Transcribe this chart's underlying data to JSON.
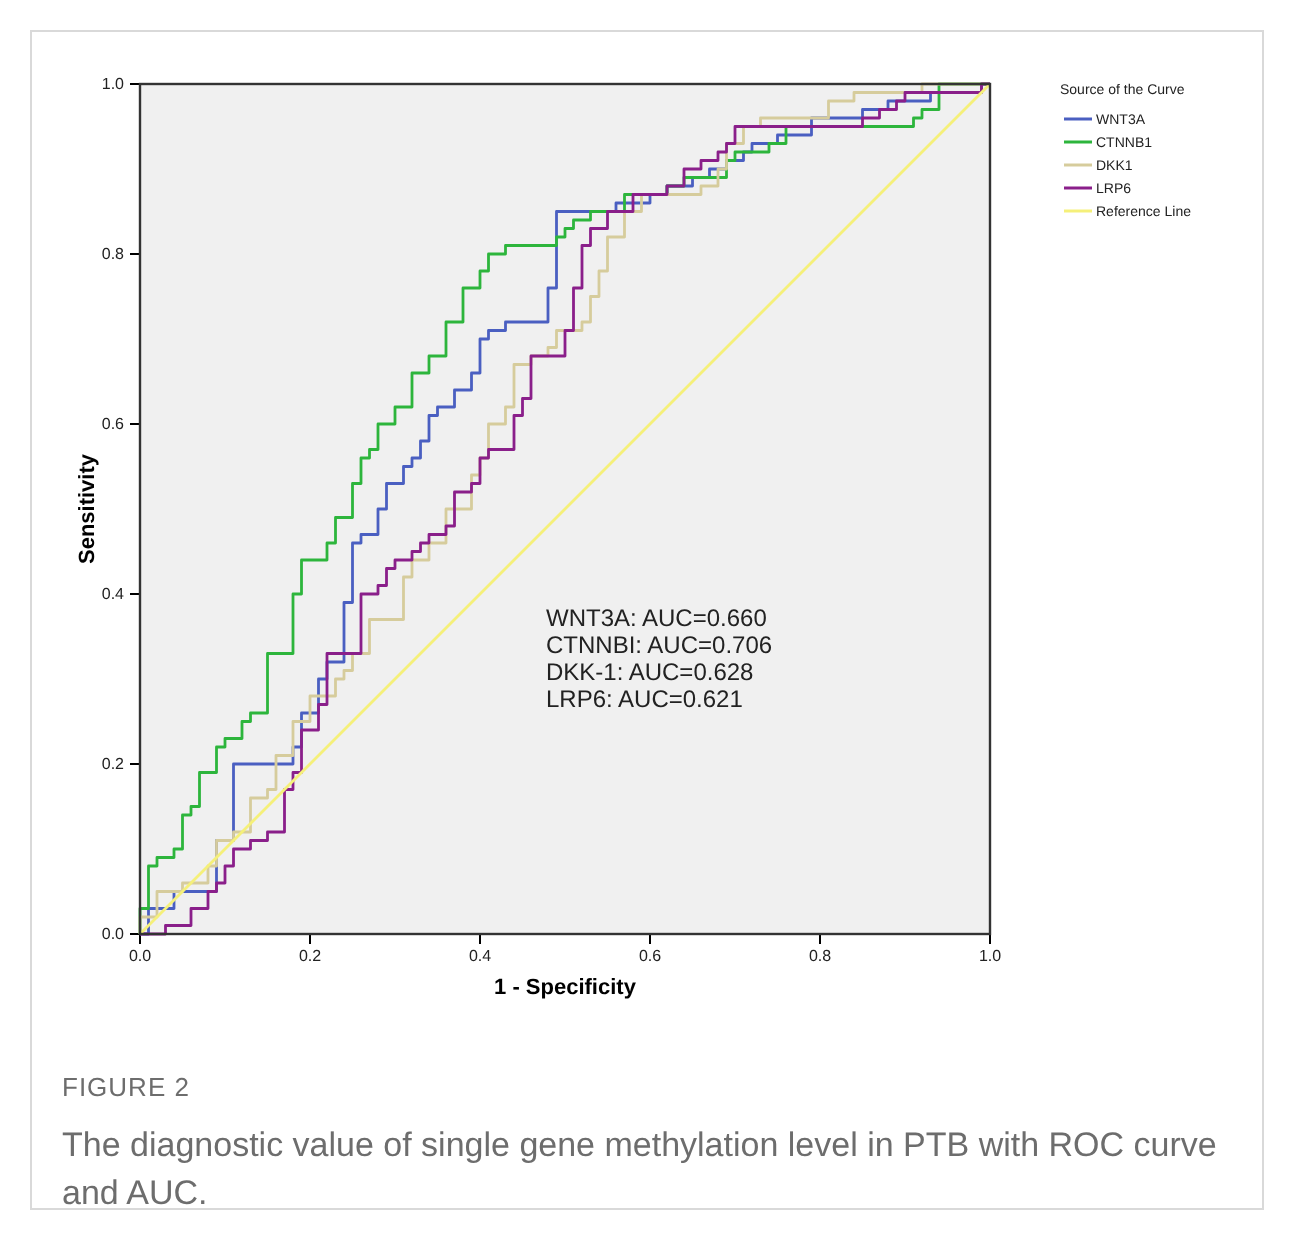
{
  "chart_data": {
    "type": "step",
    "title": "FIGURE 2",
    "subtitle": "The diagnostic value of single gene methylation level in PTB with ROC curve and AUC.",
    "xlabel": "1 - Specificity",
    "ylabel": "Sensitivity",
    "legend_title": "Source of the Curve",
    "legend": "right",
    "grid": false,
    "xlim": [
      0,
      1
    ],
    "ylim": [
      0,
      1
    ],
    "xticks": [
      {
        "value": 0,
        "label": "0.0"
      },
      {
        "value": 0.2,
        "label": "0.2"
      },
      {
        "value": 0.4,
        "label": "0.4"
      },
      {
        "value": 0.6,
        "label": "0.6"
      },
      {
        "value": 0.8,
        "label": "0.8"
      },
      {
        "value": 1,
        "label": "1.0"
      }
    ],
    "yticks": [
      {
        "value": 0,
        "label": "0.0"
      },
      {
        "value": 0.2,
        "label": "0.2"
      },
      {
        "value": 0.4,
        "label": "0.4"
      },
      {
        "value": 0.6,
        "label": "0.6"
      },
      {
        "value": 0.8,
        "label": "0.8"
      },
      {
        "value": 1,
        "label": "1.0"
      }
    ],
    "annotations": [
      "WNT3A: AUC=0.660",
      "CTNNBI: AUC=0.706",
      "DKK-1: AUC=0.628",
      "LRP6: AUC=0.621"
    ],
    "series": [
      {
        "name": "WNT3A",
        "color": "#4a5fc1",
        "x": [
          0,
          0.01,
          0.04,
          0.09,
          0.11,
          0.18,
          0.19,
          0.21,
          0.22,
          0.24,
          0.25,
          0.26,
          0.28,
          0.29,
          0.31,
          0.32,
          0.33,
          0.34,
          0.35,
          0.37,
          0.39,
          0.4,
          0.41,
          0.43,
          0.48,
          0.49,
          0.56,
          0.6,
          0.62,
          0.65,
          0.67,
          0.69,
          0.71,
          0.72,
          0.75,
          0.79,
          0.85,
          0.88,
          0.93,
          0.99,
          1
        ],
        "values": [
          0,
          0,
          0.03,
          0.05,
          0.11,
          0.2,
          0.22,
          0.26,
          0.3,
          0.32,
          0.39,
          0.46,
          0.47,
          0.5,
          0.53,
          0.55,
          0.56,
          0.58,
          0.61,
          0.62,
          0.64,
          0.66,
          0.7,
          0.71,
          0.72,
          0.76,
          0.85,
          0.86,
          0.87,
          0.88,
          0.89,
          0.9,
          0.91,
          0.92,
          0.93,
          0.94,
          0.96,
          0.97,
          0.98,
          0.99,
          1
        ]
      },
      {
        "name": "CTNNB1",
        "color": "#2db53c",
        "x": [
          0,
          0.01,
          0.02,
          0.04,
          0.05,
          0.06,
          0.07,
          0.09,
          0.1,
          0.12,
          0.13,
          0.15,
          0.18,
          0.19,
          0.22,
          0.23,
          0.25,
          0.26,
          0.27,
          0.28,
          0.3,
          0.32,
          0.34,
          0.35,
          0.36,
          0.38,
          0.4,
          0.41,
          0.43,
          0.49,
          0.5,
          0.51,
          0.53,
          0.57,
          0.62,
          0.64,
          0.69,
          0.7,
          0.74,
          0.76,
          0.91,
          0.92,
          0.94,
          1
        ],
        "values": [
          0,
          0.03,
          0.08,
          0.09,
          0.1,
          0.14,
          0.15,
          0.19,
          0.22,
          0.23,
          0.25,
          0.26,
          0.33,
          0.4,
          0.44,
          0.46,
          0.49,
          0.53,
          0.56,
          0.57,
          0.6,
          0.62,
          0.66,
          0.68,
          0.68,
          0.72,
          0.76,
          0.78,
          0.8,
          0.81,
          0.82,
          0.83,
          0.84,
          0.85,
          0.87,
          0.88,
          0.89,
          0.91,
          0.92,
          0.93,
          0.95,
          0.96,
          0.97,
          1
        ]
      },
      {
        "name": "DKK1",
        "color": "#d6cc9c",
        "x": [
          0,
          0.02,
          0.05,
          0.08,
          0.09,
          0.11,
          0.13,
          0.15,
          0.16,
          0.18,
          0.2,
          0.23,
          0.24,
          0.25,
          0.27,
          0.31,
          0.32,
          0.34,
          0.36,
          0.39,
          0.4,
          0.41,
          0.43,
          0.44,
          0.46,
          0.48,
          0.49,
          0.52,
          0.53,
          0.54,
          0.55,
          0.57,
          0.59,
          0.66,
          0.68,
          0.69,
          0.71,
          0.73,
          0.81,
          0.84,
          0.92,
          1
        ],
        "values": [
          0,
          0.02,
          0.05,
          0.06,
          0.08,
          0.11,
          0.12,
          0.16,
          0.17,
          0.21,
          0.25,
          0.28,
          0.3,
          0.31,
          0.33,
          0.37,
          0.42,
          0.44,
          0.46,
          0.5,
          0.54,
          0.56,
          0.6,
          0.62,
          0.67,
          0.68,
          0.69,
          0.71,
          0.72,
          0.75,
          0.78,
          0.82,
          0.85,
          0.87,
          0.88,
          0.9,
          0.93,
          0.95,
          0.96,
          0.98,
          0.99,
          1
        ]
      },
      {
        "name": "LRP6",
        "color": "#8a1f8a",
        "x": [
          0,
          0.03,
          0.06,
          0.08,
          0.09,
          0.1,
          0.11,
          0.13,
          0.15,
          0.17,
          0.18,
          0.19,
          0.21,
          0.22,
          0.26,
          0.28,
          0.29,
          0.3,
          0.32,
          0.33,
          0.34,
          0.36,
          0.37,
          0.39,
          0.4,
          0.41,
          0.44,
          0.45,
          0.46,
          0.5,
          0.51,
          0.52,
          0.53,
          0.55,
          0.58,
          0.62,
          0.64,
          0.66,
          0.68,
          0.69,
          0.7,
          0.85,
          0.87,
          0.89,
          0.9,
          0.99,
          1
        ],
        "values": [
          0,
          0,
          0.01,
          0.03,
          0.05,
          0.06,
          0.08,
          0.1,
          0.11,
          0.12,
          0.17,
          0.19,
          0.24,
          0.27,
          0.33,
          0.4,
          0.41,
          0.43,
          0.44,
          0.45,
          0.46,
          0.47,
          0.48,
          0.52,
          0.53,
          0.56,
          0.57,
          0.61,
          0.63,
          0.68,
          0.71,
          0.76,
          0.81,
          0.83,
          0.85,
          0.87,
          0.88,
          0.9,
          0.91,
          0.92,
          0.93,
          0.95,
          0.96,
          0.97,
          0.98,
          0.99,
          1
        ]
      },
      {
        "name": "Reference Line",
        "type": "line",
        "color": "#f5f07a",
        "x": [
          0,
          1
        ],
        "values": [
          0,
          1
        ]
      }
    ]
  }
}
